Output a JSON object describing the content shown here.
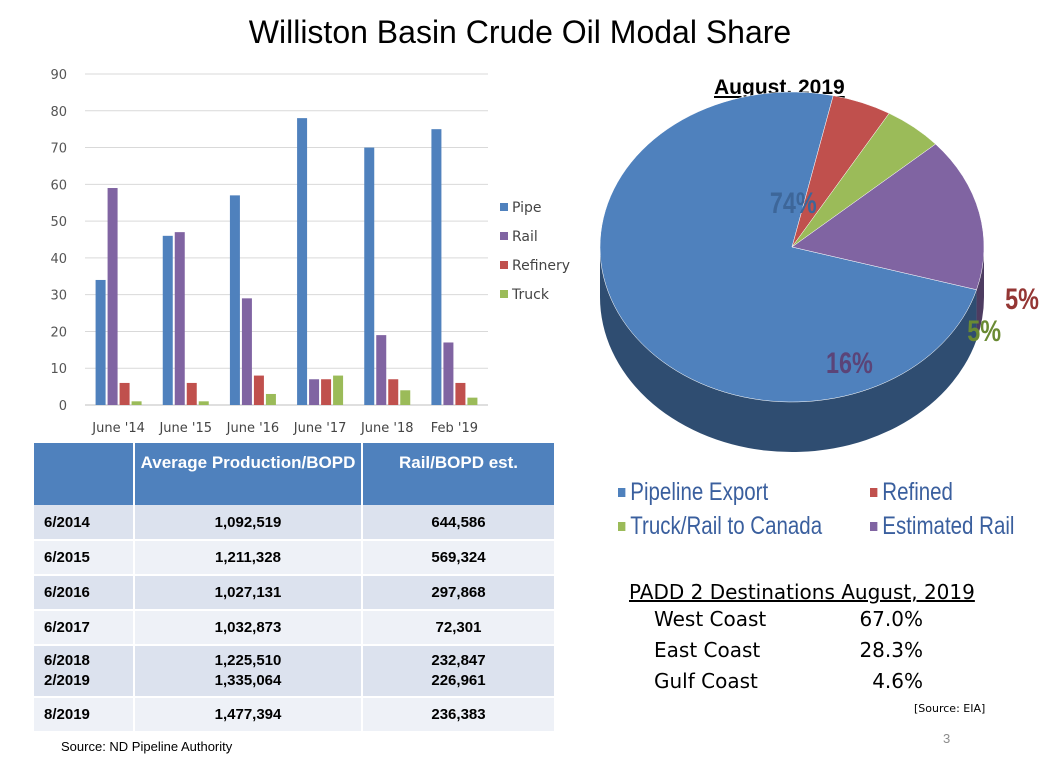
{
  "title": "Williston Basin Crude Oil Modal Share",
  "chart_data": [
    {
      "type": "bar",
      "categories": [
        "June '14",
        "June '15",
        "June '16",
        "June '17",
        "June '18",
        "Feb '19"
      ],
      "series": [
        {
          "name": "Pipe",
          "color": "#4f81bd",
          "values": [
            34,
            46,
            57,
            78,
            70,
            75
          ]
        },
        {
          "name": "Rail",
          "color": "#8064a2",
          "values": [
            59,
            47,
            29,
            7,
            19,
            17
          ]
        },
        {
          "name": "Refinery",
          "color": "#c0504d",
          "values": [
            6,
            6,
            8,
            7,
            7,
            6
          ]
        },
        {
          "name": "Truck",
          "color": "#9bbb59",
          "values": [
            1,
            1,
            3,
            8,
            4,
            2
          ]
        }
      ],
      "ylim": [
        0,
        90
      ],
      "yticks": [
        0,
        10,
        20,
        30,
        40,
        50,
        60,
        70,
        80,
        90
      ],
      "grid": true,
      "legend": "right"
    },
    {
      "type": "pie",
      "title": "August, 2019",
      "slices": [
        {
          "label": "Pipeline Export",
          "value": 74,
          "pct_label": "74%",
          "color": "#4f81bd"
        },
        {
          "label": "Refined",
          "value": 5,
          "pct_label": "5%",
          "color": "#c0504d"
        },
        {
          "label": "Truck/Rail to Canada",
          "value": 5,
          "pct_label": "5%",
          "color": "#9bbb59"
        },
        {
          "label": "Estimated Rail",
          "value": 16,
          "pct_label": "16%",
          "color": "#8064a2"
        }
      ],
      "legend": "bottom"
    }
  ],
  "table": {
    "headers": [
      "",
      "Average Production/BOPD",
      "Rail/BOPD est."
    ],
    "rows": [
      {
        "date": "6/2014",
        "production": "1,092,519",
        "rail": "644,586"
      },
      {
        "date": "6/2015",
        "production": "1,211,328",
        "rail": "569,324"
      },
      {
        "date": "6/2016",
        "production": "1,027,131",
        "rail": "297,868"
      },
      {
        "date": "6/2017",
        "production": "1,032,873",
        "rail": "72,301"
      },
      {
        "date": "6/2018",
        "production": "1,225,510",
        "rail": "232,847"
      },
      {
        "date": "2/2019",
        "production": "1,335,064",
        "rail": "226,961"
      },
      {
        "date": "8/2019",
        "production": "1,477,394",
        "rail": "236,383"
      }
    ],
    "source": "Source: ND Pipeline Authority"
  },
  "padd": {
    "title": "PADD 2 Destinations August, 2019",
    "rows": [
      {
        "name": "West Coast",
        "value": "67.0%"
      },
      {
        "name": "East Coast",
        "value": "28.3%"
      },
      {
        "name": "Gulf Coast",
        "value": "4.6%"
      }
    ],
    "source": "[Source: EIA]"
  },
  "page_number": "3"
}
